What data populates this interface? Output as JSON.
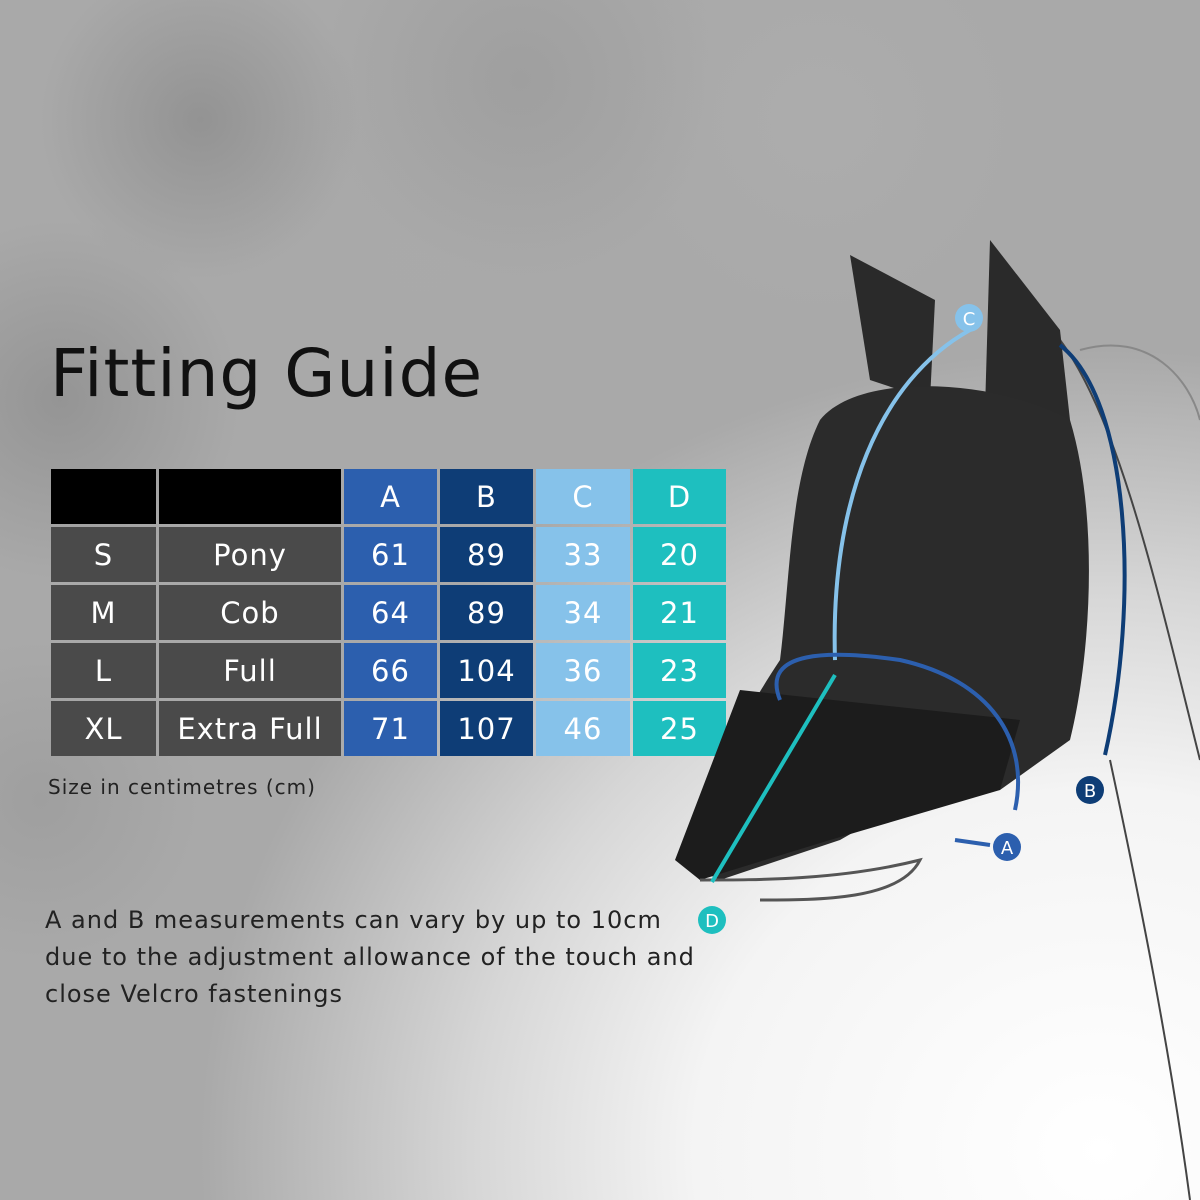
{
  "title": "Fitting Guide",
  "table": {
    "headers": [
      "",
      "",
      "A",
      "B",
      "C",
      "D"
    ],
    "rows": [
      {
        "size": "S",
        "name": "Pony",
        "a": "61",
        "b": "89",
        "c": "33",
        "d": "20"
      },
      {
        "size": "M",
        "name": "Cob",
        "a": "64",
        "b": "89",
        "c": "34",
        "d": "21"
      },
      {
        "size": "L",
        "name": "Full",
        "a": "66",
        "b": "104",
        "c": "36",
        "d": "23"
      },
      {
        "size": "XL",
        "name": "Extra Full",
        "a": "71",
        "b": "107",
        "c": "46",
        "d": "25"
      }
    ]
  },
  "unit_note": "Size in centimetres (cm)",
  "description": "A and B measurements can vary by up to 10cm due to the adjustment allowance of the touch and close Velcro fastenings",
  "diagram": {
    "labels": {
      "a": "A",
      "b": "B",
      "c": "C",
      "d": "D"
    }
  },
  "colors": {
    "a": "#2c5fae",
    "b": "#0e3d76",
    "c": "#86c2ea",
    "d": "#1ebfbf",
    "size_cells": "#4a4a4a",
    "header_blank": "#000000"
  }
}
